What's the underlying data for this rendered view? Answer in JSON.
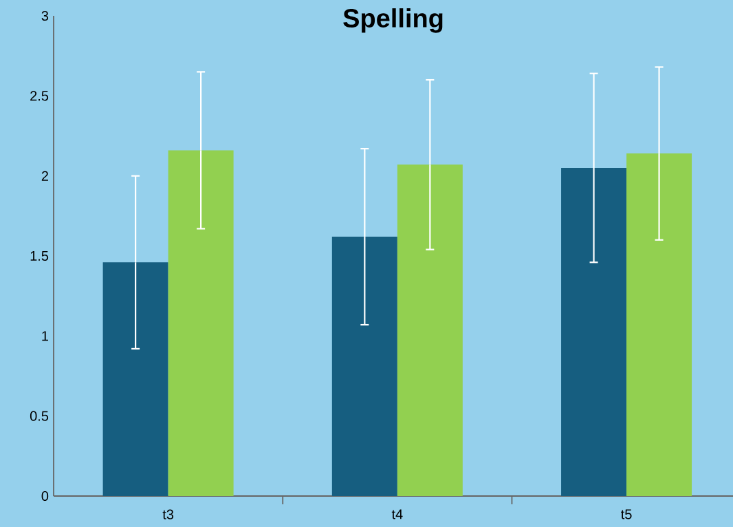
{
  "chart_data": {
    "type": "bar",
    "title": "Spelling",
    "categories": [
      "t3",
      "t4",
      "t5"
    ],
    "series": [
      {
        "color": "#165e80",
        "values": [
          1.46,
          1.62,
          2.05
        ],
        "errors": [
          0.54,
          0.55,
          0.59
        ]
      },
      {
        "color": "#92d050",
        "values": [
          2.16,
          2.07,
          2.14
        ],
        "errors": [
          0.49,
          0.53,
          0.54
        ]
      }
    ],
    "ylim": [
      0,
      3
    ],
    "yticks": [
      0,
      0.5,
      1,
      1.5,
      2,
      2.5,
      3
    ],
    "grid": false
  }
}
